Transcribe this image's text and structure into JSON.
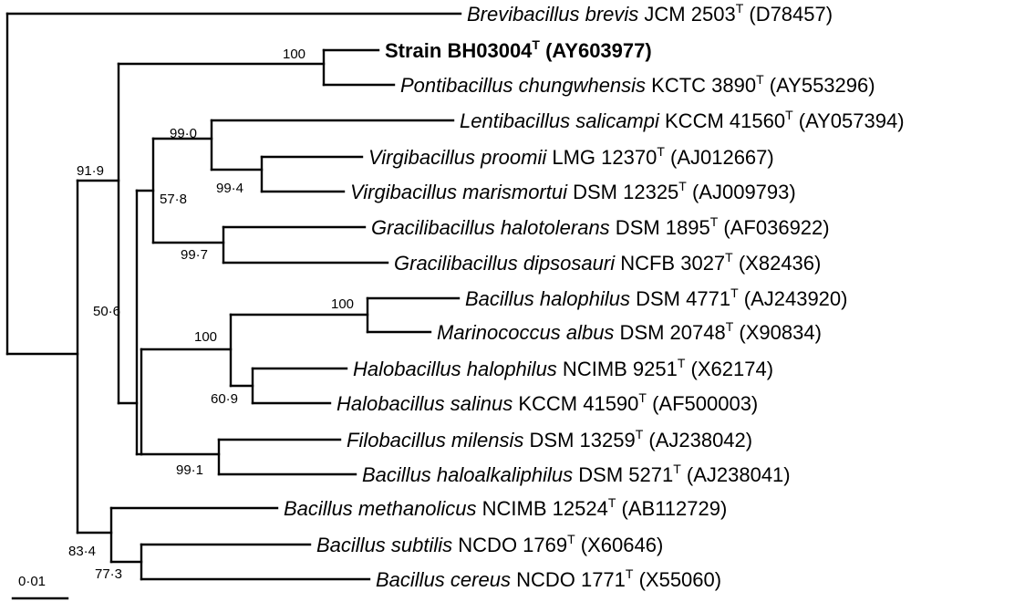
{
  "taxa": [
    {
      "id": "brevis",
      "genus": "Brevibacillus brevis",
      "strain": "JCM 2503",
      "type_mark": "T",
      "accession": "(D78457)",
      "bold": false
    },
    {
      "id": "bh03004",
      "genus": "",
      "strain": "Strain BH03004",
      "type_mark": "T",
      "accession": "(AY603977)",
      "bold": true
    },
    {
      "id": "pontibacillus",
      "genus": "Pontibacillus chungwhensis",
      "strain": "KCTC 3890",
      "type_mark": "T",
      "accession": "(AY553296)",
      "bold": false
    },
    {
      "id": "lentibacillus",
      "genus": "Lentibacillus salicampi",
      "strain": "KCCM 41560",
      "type_mark": "T",
      "accession": "(AY057394)",
      "bold": false
    },
    {
      "id": "vproomii",
      "genus": "Virgibacillus proomii",
      "strain": "LMG 12370",
      "type_mark": "T",
      "accession": "(AJ012667)",
      "bold": false
    },
    {
      "id": "vmarismortui",
      "genus": "Virgibacillus marismortui",
      "strain": "DSM 12325",
      "type_mark": "T",
      "accession": "(AJ009793)",
      "bold": false
    },
    {
      "id": "ghalotolerans",
      "genus": "Gracilibacillus halotolerans",
      "strain": "DSM 1895",
      "type_mark": "T",
      "accession": "(AF036922)",
      "bold": false
    },
    {
      "id": "gdipsosauri",
      "genus": "Gracilibacillus dipsosauri",
      "strain": "NCFB 3027",
      "type_mark": "T",
      "accession": "(X82436)",
      "bold": false
    },
    {
      "id": "bhalophilus",
      "genus": "Bacillus halophilus",
      "strain": "DSM 4771",
      "type_mark": "T",
      "accession": "(AJ243920)",
      "bold": false
    },
    {
      "id": "malbus",
      "genus": "Marinococcus albus",
      "strain": "DSM 20748",
      "type_mark": "T",
      "accession": "(X90834)",
      "bold": false
    },
    {
      "id": "hhalophilus",
      "genus": "Halobacillus halophilus",
      "strain": "NCIMB 9251",
      "type_mark": "T",
      "accession": "(X62174)",
      "bold": false
    },
    {
      "id": "hsalinus",
      "genus": "Halobacillus salinus",
      "strain": "KCCM 41590",
      "type_mark": "T",
      "accession": "(AF500003)",
      "bold": false
    },
    {
      "id": "fmilensis",
      "genus": "Filobacillus milensis",
      "strain": "DSM 13259",
      "type_mark": "T",
      "accession": "(AJ238042)",
      "bold": false
    },
    {
      "id": "bhaloalkaliphilus",
      "genus": "Bacillus haloalkaliphilus",
      "strain": "DSM 5271",
      "type_mark": "T",
      "accession": "(AJ238041)",
      "bold": false
    },
    {
      "id": "bmethanolicus",
      "genus": "Bacillus methanolicus",
      "strain": "NCIMB 12524",
      "type_mark": "T",
      "accession": "(AB112729)",
      "bold": false
    },
    {
      "id": "bsubtilis",
      "genus": "Bacillus subtilis",
      "strain": "NCDO 1769",
      "type_mark": "T",
      "accession": "(X60646)",
      "bold": false
    },
    {
      "id": "bcereus",
      "genus": "Bacillus cereus",
      "strain": "NCDO 1771",
      "type_mark": "T",
      "accession": "(X55060)",
      "bold": false
    }
  ],
  "bootstrap": [
    {
      "id": "b100a",
      "value": "100"
    },
    {
      "id": "b919",
      "value": "91·9"
    },
    {
      "id": "b990",
      "value": "99·0"
    },
    {
      "id": "b994",
      "value": "99·4"
    },
    {
      "id": "b578",
      "value": "57·8"
    },
    {
      "id": "b997",
      "value": "99·7"
    },
    {
      "id": "b506",
      "value": "50·6"
    },
    {
      "id": "b100b",
      "value": "100"
    },
    {
      "id": "b100c",
      "value": "100"
    },
    {
      "id": "b609",
      "value": "60·9"
    },
    {
      "id": "b991",
      "value": "99·1"
    },
    {
      "id": "b834",
      "value": "83·4"
    },
    {
      "id": "b773",
      "value": "77·3"
    }
  ],
  "scale_bar": {
    "label": "0·01",
    "value": 0.01
  }
}
